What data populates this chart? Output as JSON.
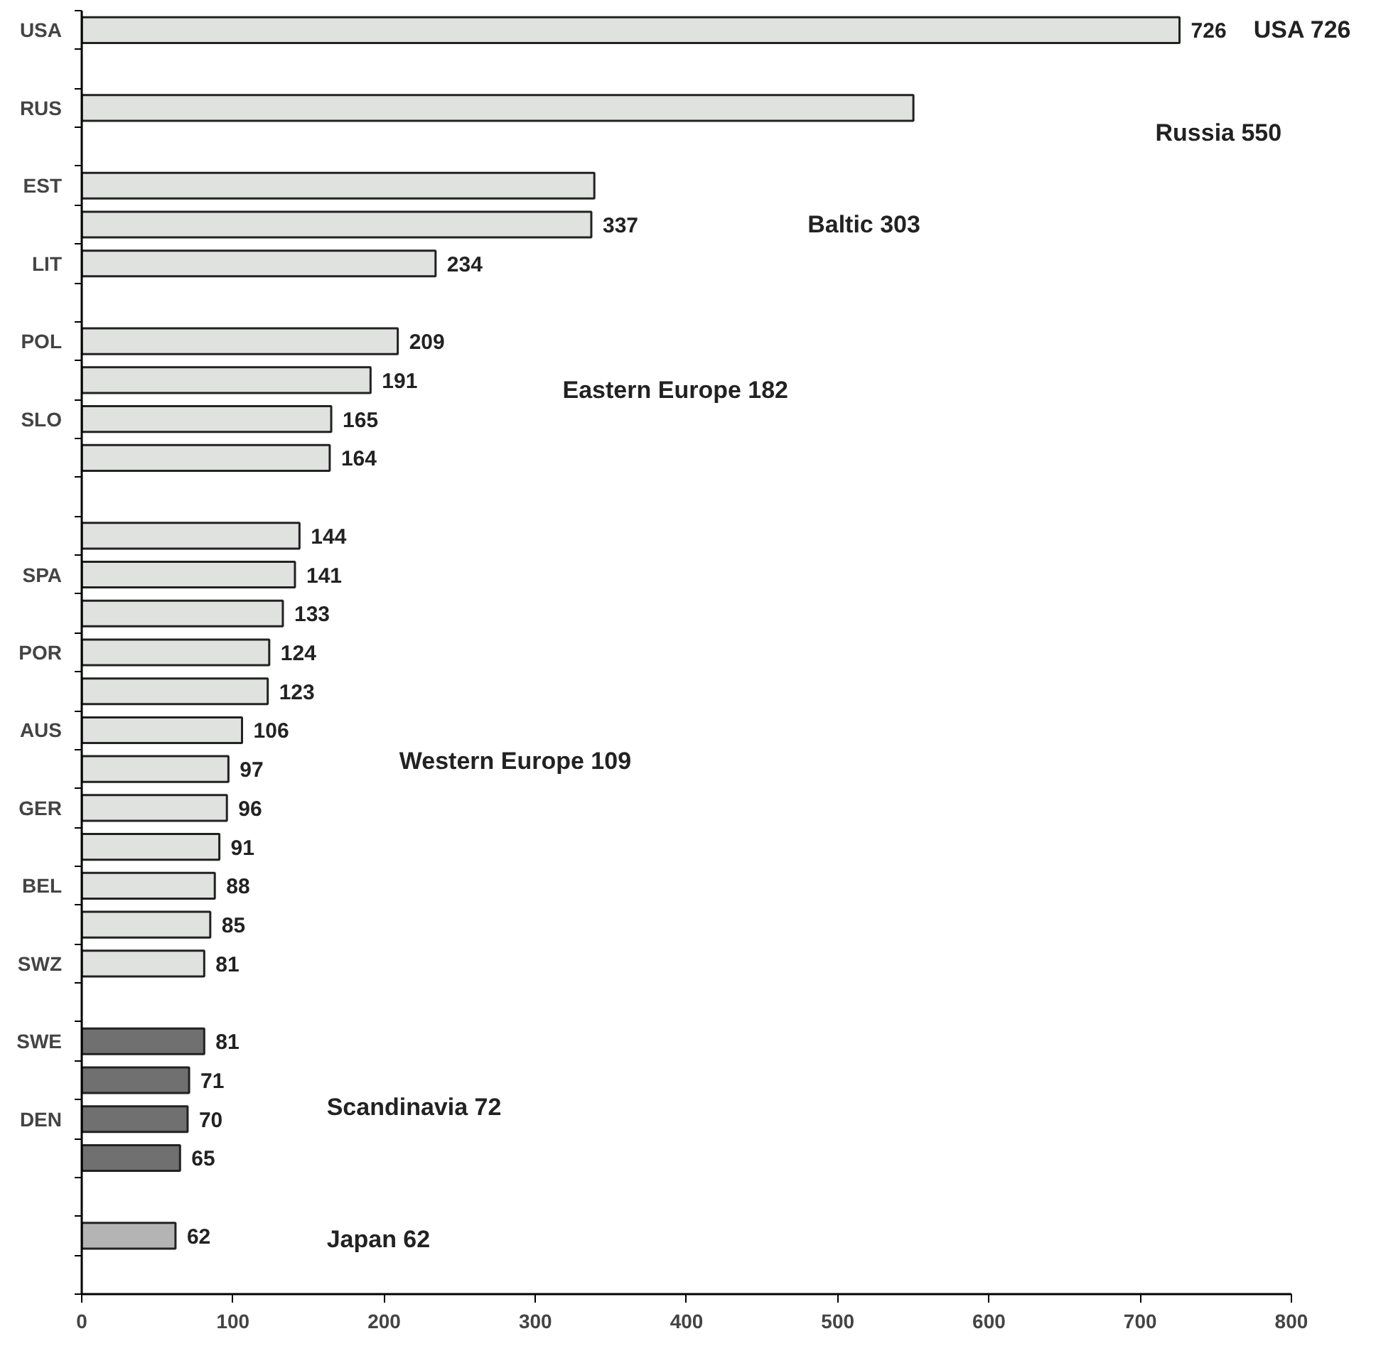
{
  "chart_data": {
    "type": "bar",
    "orientation": "horizontal",
    "categories": [
      "USA",
      null,
      "RUS",
      null,
      "EST",
      null,
      "LIT",
      null,
      "POL",
      null,
      "SLO",
      null,
      null,
      null,
      "SPA",
      null,
      "POR",
      null,
      "AUS",
      null,
      "GER",
      null,
      "BEL",
      null,
      "SWZ",
      null,
      "SWE",
      null,
      "DEN",
      null,
      null,
      null,
      null
    ],
    "values": [
      726,
      null,
      550,
      null,
      339,
      337,
      234,
      null,
      209,
      191,
      165,
      164,
      null,
      144,
      141,
      133,
      124,
      123,
      106,
      97,
      96,
      91,
      88,
      85,
      81,
      null,
      81,
      71,
      70,
      65,
      null,
      62,
      null
    ],
    "value_labels": [
      "726",
      null,
      null,
      null,
      null,
      "337",
      "234",
      null,
      "209",
      "191",
      "165",
      "164",
      null,
      "144",
      "141",
      "133",
      "124",
      "123",
      "106",
      "97",
      "96",
      "91",
      "88",
      "85",
      "81",
      null,
      "81",
      "71",
      "70",
      "65",
      null,
      "62",
      null
    ],
    "colors": [
      "#e0e2e0",
      null,
      "#e0e2e0",
      null,
      "#e0e2e0",
      "#e0e2e0",
      "#e0e2e0",
      null,
      "#e0e2e0",
      "#e0e2e0",
      "#e0e2e0",
      "#e0e2e0",
      null,
      "#e0e2e0",
      "#e0e2e0",
      "#e0e2e0",
      "#e0e2e0",
      "#e0e2e0",
      "#e0e2e0",
      "#e0e2e0",
      "#e0e2e0",
      "#e0e2e0",
      "#e0e2e0",
      "#e0e2e0",
      "#e0e2e0",
      null,
      "#707070",
      "#707070",
      "#707070",
      "#707070",
      null,
      "#b4b4b4",
      null
    ],
    "xlim": [
      0,
      800
    ],
    "xticks": [
      0,
      100,
      200,
      300,
      400,
      500,
      600,
      700,
      800
    ],
    "grid": false,
    "annotations": [
      "USA 726",
      "Russia 550",
      "Baltic 303",
      "Eastern Europe 182",
      "Western Europe 109",
      "Scandinavia 72",
      "Japan 62"
    ]
  }
}
